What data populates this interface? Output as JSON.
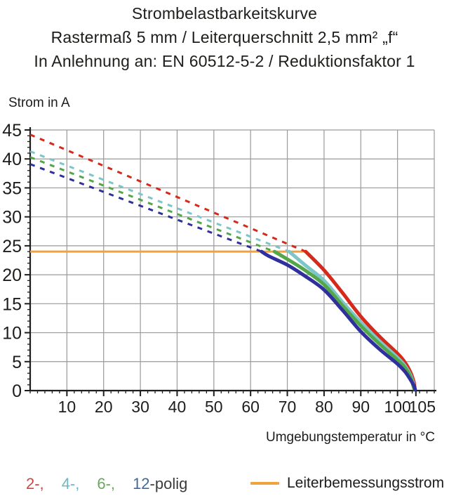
{
  "title": {
    "line1": "Strombelastbarkeitskurve",
    "line2": "Rastermaß 5 mm / Leiterquerschnitt 2,5 mm² „f“",
    "line3": "In Anlehnung an: EN 60512-5-2 / Reduktionsfaktor 1"
  },
  "axes": {
    "y_label": "Strom in A",
    "x_label": "Umgebungstemperatur in °C"
  },
  "legend": {
    "pole_tokens": [
      {
        "text": "2-,",
        "color": "#cc4a43",
        "gap": true
      },
      {
        "text": "4-,",
        "color": "#6db8c4",
        "gap": true
      },
      {
        "text": "6-,",
        "color": "#68a95c",
        "gap": true
      },
      {
        "text": "12",
        "color": "#41689f",
        "gap": false
      },
      {
        "text": "-polig",
        "color": "#3c3c3b",
        "gap": false
      }
    ],
    "rated": {
      "swatch_color": "#f2a23d",
      "label": "Leiterbemessungsstrom"
    }
  },
  "colors": {
    "grid": "#9a9a9a",
    "axis": "#1d1d1b",
    "tick_text": "#1d1d1b",
    "rated_line": "#f2a23d"
  },
  "chart_data": {
    "type": "line",
    "title": "Strombelastbarkeitskurve",
    "xlabel": "Umgebungstemperatur in °C",
    "ylabel": "Strom in A",
    "xlim": [
      0,
      110
    ],
    "ylim": [
      0,
      45
    ],
    "x_major_ticks": [
      10,
      20,
      30,
      40,
      50,
      60,
      70,
      80,
      90,
      100,
      105
    ],
    "x_grid_ticks": [
      10,
      20,
      30,
      40,
      50,
      60,
      70,
      80,
      90,
      100,
      110
    ],
    "y_major_ticks": [
      0,
      5,
      10,
      15,
      20,
      25,
      30,
      35,
      40,
      45
    ],
    "x_minor_step": 2,
    "y_minor_step": 1,
    "grid": true,
    "legend_position": "bottom",
    "rated_line": {
      "name": "Leiterbemessungsstrom",
      "value_a": 24,
      "color": "#f2a23d",
      "x_range": [
        0,
        75
      ]
    },
    "series": [
      {
        "name": "2-polig",
        "color": "#d5291c",
        "dashed_points": [
          [
            0,
            44.2
          ],
          [
            75,
            24
          ]
        ],
        "solid_points": [
          [
            75,
            24
          ],
          [
            80,
            20.8
          ],
          [
            85,
            16.9
          ],
          [
            90,
            12.8
          ],
          [
            95,
            9.4
          ],
          [
            100,
            6.4
          ],
          [
            102,
            4.9
          ],
          [
            103.5,
            3.2
          ],
          [
            104.4,
            1.6
          ],
          [
            104.7,
            0.5
          ]
        ]
      },
      {
        "name": "4-polig",
        "color": "#7cc5c8",
        "dashed_points": [
          [
            0,
            41.3
          ],
          [
            70.5,
            24
          ]
        ],
        "solid_points": [
          [
            70.5,
            24
          ],
          [
            75,
            21.6
          ],
          [
            80,
            19.0
          ],
          [
            85,
            15.3
          ],
          [
            90,
            11.8
          ],
          [
            95,
            8.6
          ],
          [
            100,
            5.7
          ],
          [
            102,
            4.3
          ],
          [
            103.5,
            2.7
          ],
          [
            104.3,
            1.2
          ],
          [
            104.6,
            0.3
          ]
        ]
      },
      {
        "name": "6-polig",
        "color": "#54a749",
        "dashed_points": [
          [
            0,
            40.3
          ],
          [
            66.5,
            24
          ]
        ],
        "solid_points": [
          [
            66.5,
            24
          ],
          [
            70,
            22.7
          ],
          [
            75,
            20.7
          ],
          [
            80,
            18.3
          ],
          [
            85,
            14.7
          ],
          [
            90,
            11.2
          ],
          [
            95,
            8.1
          ],
          [
            100,
            5.3
          ],
          [
            102,
            4.0
          ],
          [
            103.5,
            2.4
          ],
          [
            104.2,
            1.0
          ],
          [
            104.5,
            0.3
          ]
        ]
      },
      {
        "name": "12-polig",
        "color": "#2f2f9d",
        "dashed_points": [
          [
            0,
            39.1
          ],
          [
            63,
            24
          ]
        ],
        "solid_points": [
          [
            63,
            24
          ],
          [
            65,
            23.2
          ],
          [
            70,
            21.7
          ],
          [
            75,
            19.7
          ],
          [
            80,
            17.4
          ],
          [
            85,
            13.9
          ],
          [
            90,
            10.2
          ],
          [
            95,
            7.2
          ],
          [
            100,
            4.6
          ],
          [
            102,
            3.3
          ],
          [
            103.5,
            1.9
          ],
          [
            104.5,
            0.8
          ],
          [
            104.8,
            0.15
          ]
        ]
      }
    ]
  }
}
